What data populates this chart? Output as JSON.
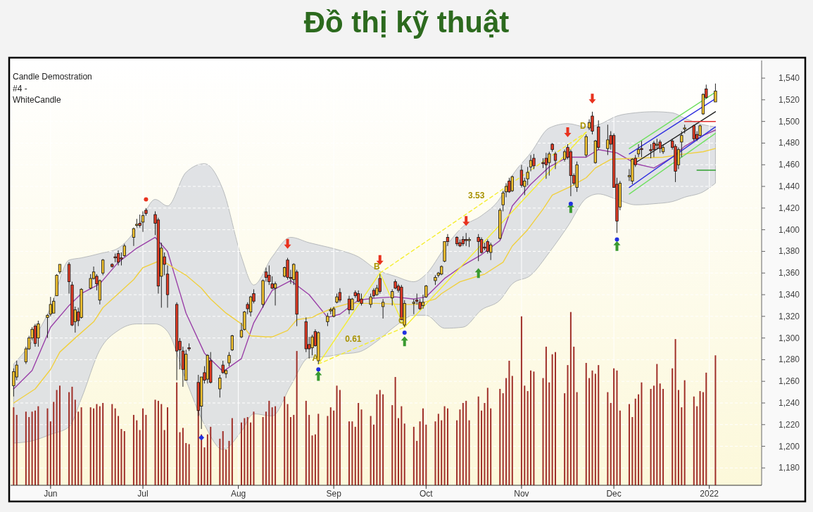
{
  "chart_data": {
    "type": "candlestick",
    "title": "Đồ thị kỹ thuật",
    "annotations": [
      "Candle Demostration",
      "#4 -",
      "WhiteCandle",
      {
        "text": "A",
        "x": "2021-08-27",
        "y": 1276
      },
      {
        "text": "B",
        "x": "2021-09-16",
        "y": 1360
      },
      {
        "text": "C",
        "x": "2021-09-24",
        "y": 1310
      },
      {
        "text": "D",
        "x": "2021-11-22",
        "y": 1490
      },
      {
        "text": "0.61",
        "x": "2021-09-10",
        "y": 1293
      },
      {
        "text": "3.53",
        "x": "2021-10-20",
        "y": 1426
      }
    ],
    "x": [
      "2021-05-20",
      "2021-05-21",
      "2021-05-24",
      "2021-05-25",
      "2021-05-26",
      "2021-05-27",
      "2021-05-28",
      "2021-05-31",
      "2021-06-01",
      "2021-06-02",
      "2021-06-03",
      "2021-06-04",
      "2021-06-07",
      "2021-06-08",
      "2021-06-09",
      "2021-06-10",
      "2021-06-11",
      "2021-06-14",
      "2021-06-15",
      "2021-06-16",
      "2021-06-17",
      "2021-06-18",
      "2021-06-21",
      "2021-06-22",
      "2021-06-23",
      "2021-06-24",
      "2021-06-25",
      "2021-06-28",
      "2021-06-29",
      "2021-06-30",
      "2021-07-01",
      "2021-07-02",
      "2021-07-05",
      "2021-07-06",
      "2021-07-07",
      "2021-07-08",
      "2021-07-09",
      "2021-07-12",
      "2021-07-13",
      "2021-07-14",
      "2021-07-15",
      "2021-07-16",
      "2021-07-19",
      "2021-07-20",
      "2021-07-21",
      "2021-07-22",
      "2021-07-23",
      "2021-07-26",
      "2021-07-27",
      "2021-07-28",
      "2021-07-29",
      "2021-07-30",
      "2021-08-02",
      "2021-08-03",
      "2021-08-04",
      "2021-08-05",
      "2021-08-06",
      "2021-08-09",
      "2021-08-10",
      "2021-08-11",
      "2021-08-12",
      "2021-08-13",
      "2021-08-16",
      "2021-08-17",
      "2021-08-18",
      "2021-08-19",
      "2021-08-20",
      "2021-08-23",
      "2021-08-24",
      "2021-08-25",
      "2021-08-26",
      "2021-08-27",
      "2021-08-30",
      "2021-08-31",
      "2021-09-01",
      "2021-09-02",
      "2021-09-03",
      "2021-09-06",
      "2021-09-07",
      "2021-09-08",
      "2021-09-09",
      "2021-09-10",
      "2021-09-13",
      "2021-09-14",
      "2021-09-15",
      "2021-09-16",
      "2021-09-17",
      "2021-09-20",
      "2021-09-21",
      "2021-09-22",
      "2021-09-23",
      "2021-09-24",
      "2021-09-27",
      "2021-09-28",
      "2021-09-29",
      "2021-09-30",
      "2021-10-01",
      "2021-10-04",
      "2021-10-05",
      "2021-10-06",
      "2021-10-07",
      "2021-10-08",
      "2021-10-11",
      "2021-10-12",
      "2021-10-13",
      "2021-10-14",
      "2021-10-15",
      "2021-10-18",
      "2021-10-19",
      "2021-10-20",
      "2021-10-21",
      "2021-10-22",
      "2021-10-25",
      "2021-10-26",
      "2021-10-27",
      "2021-10-28",
      "2021-10-29",
      "2021-11-01",
      "2021-11-02",
      "2021-11-03",
      "2021-11-04",
      "2021-11-05",
      "2021-11-08",
      "2021-11-09",
      "2021-11-10",
      "2021-11-11",
      "2021-11-12",
      "2021-11-15",
      "2021-11-16",
      "2021-11-17",
      "2021-11-18",
      "2021-11-19",
      "2021-11-22",
      "2021-11-23",
      "2021-11-24",
      "2021-11-25",
      "2021-11-26",
      "2021-11-29",
      "2021-11-30",
      "2021-12-01",
      "2021-12-02",
      "2021-12-03",
      "2021-12-06",
      "2021-12-07",
      "2021-12-08",
      "2021-12-09",
      "2021-12-10",
      "2021-12-13",
      "2021-12-14",
      "2021-12-15",
      "2021-12-16",
      "2021-12-17",
      "2021-12-20",
      "2021-12-21",
      "2021-12-22",
      "2021-12-23",
      "2021-12-24",
      "2021-12-27",
      "2021-12-28",
      "2021-12-29",
      "2021-12-30",
      "2021-12-31",
      "2022-01-03"
    ],
    "ohlc": [
      [
        1256,
        1272,
        1246,
        1269
      ],
      [
        1264,
        1279,
        1261,
        1275
      ],
      [
        1278,
        1292,
        1276,
        1290
      ],
      [
        1290,
        1302,
        1289,
        1300
      ],
      [
        1300,
        1310,
        1298,
        1308
      ],
      [
        1311,
        1313,
        1292,
        1295
      ],
      [
        1300,
        1316,
        1292,
        1313
      ],
      [
        1319,
        1322,
        1300,
        1321
      ],
      [
        1322,
        1338,
        1320,
        1331
      ],
      [
        1323,
        1337,
        1323,
        1334
      ],
      [
        1339,
        1359,
        1339,
        1358
      ],
      [
        1361,
        1368,
        1359,
        1368
      ],
      [
        1368,
        1370,
        1341,
        1352
      ],
      [
        1349,
        1352,
        1311,
        1312
      ],
      [
        1315,
        1329,
        1305,
        1326
      ],
      [
        1324,
        1328,
        1311,
        1316
      ],
      [
        1319,
        1346,
        1318,
        1345
      ],
      [
        1346,
        1359,
        1345,
        1355
      ],
      [
        1355,
        1366,
        1354,
        1361
      ],
      [
        1357,
        1359,
        1344,
        1350
      ],
      [
        1335,
        1354,
        1331,
        1353
      ],
      [
        1360,
        1373,
        1358,
        1372
      ],
      [
        1368,
        1369,
        1365,
        1366
      ],
      [
        1375,
        1378,
        1370,
        1374
      ],
      [
        1378,
        1381,
        1367,
        1370
      ],
      [
        1374,
        1379,
        1367,
        1373
      ],
      [
        1376,
        1387,
        1375,
        1385
      ],
      [
        1393,
        1402,
        1385,
        1401
      ],
      [
        1404,
        1410,
        1402,
        1405
      ],
      [
        1406,
        1414,
        1402,
        1404
      ],
      [
        1407,
        1417,
        1398,
        1413
      ],
      [
        1418,
        1420,
        1413,
        1415
      ],
      [
        1414,
        1417,
        1395,
        1406
      ],
      [
        1409,
        1411,
        1341,
        1348
      ],
      [
        1357,
        1388,
        1328,
        1383
      ],
      [
        1375,
        1379,
        1358,
        1368
      ],
      [
        1359,
        1367,
        1328,
        1340
      ],
      [
        1331,
        1333,
        1261,
        1288
      ],
      [
        1297,
        1300,
        1271,
        1289
      ],
      [
        1288,
        1292,
        1255,
        1271
      ],
      [
        1261,
        1289,
        1261,
        1285
      ],
      [
        1291,
        1295,
        1288,
        1290
      ],
      [
        1259,
        1266,
        1228,
        1233
      ],
      [
        1237,
        1264,
        1216,
        1264
      ],
      [
        1268,
        1274,
        1258,
        1261
      ],
      [
        1262,
        1285,
        1258,
        1284
      ],
      [
        1279,
        1287,
        1258,
        1259
      ],
      [
        1253,
        1266,
        1245,
        1263
      ],
      [
        1275,
        1279,
        1267,
        1268
      ],
      [
        1267,
        1271,
        1263,
        1270
      ],
      [
        1277,
        1287,
        1274,
        1284
      ],
      [
        1289,
        1303,
        1288,
        1302
      ],
      [
        1301,
        1314,
        1300,
        1307
      ],
      [
        1308,
        1325,
        1307,
        1324
      ],
      [
        1331,
        1333,
        1322,
        1327
      ],
      [
        1324,
        1339,
        1320,
        1338
      ],
      [
        1341,
        1345,
        1332,
        1334
      ],
      [
        1331,
        1354,
        1328,
        1353
      ],
      [
        1361,
        1365,
        1352,
        1356
      ],
      [
        1358,
        1367,
        1349,
        1352
      ],
      [
        1350,
        1357,
        1345,
        1346
      ],
      [
        1346,
        1352,
        1330,
        1350
      ],
      [
        1357,
        1366,
        1356,
        1365
      ],
      [
        1372,
        1374,
        1354,
        1356
      ],
      [
        1356,
        1363,
        1350,
        1355
      ],
      [
        1354,
        1369,
        1349,
        1368
      ],
      [
        1361,
        1363,
        1311,
        1322
      ],
      [
        1315,
        1319,
        1287,
        1290
      ],
      [
        1294,
        1301,
        1281,
        1290
      ],
      [
        1291,
        1303,
        1284,
        1301
      ],
      [
        1306,
        1308,
        1292,
        1293
      ],
      [
        1279,
        1306,
        1276,
        1305
      ],
      [
        1315,
        1323,
        1311,
        1320
      ],
      [
        1325,
        1328,
        1322,
        1326
      ],
      [
        1320,
        1329,
        1319,
        1327
      ],
      [
        1333,
        1341,
        1332,
        1338
      ],
      [
        1342,
        1346,
        1333,
        1335
      ],
      [
        1336,
        1339,
        1322,
        1326
      ],
      [
        1326,
        1337,
        1326,
        1336
      ],
      [
        1342,
        1344,
        1337,
        1339
      ],
      [
        1341,
        1344,
        1333,
        1334
      ],
      [
        1336,
        1341,
        1330,
        1332
      ],
      [
        1331,
        1341,
        1328,
        1338
      ],
      [
        1344,
        1346,
        1337,
        1339
      ],
      [
        1340,
        1349,
        1339,
        1346
      ],
      [
        1355,
        1359,
        1341,
        1343
      ],
      [
        1329,
        1336,
        1318,
        1333
      ],
      [
        1337,
        1345,
        1330,
        1343
      ],
      [
        1352,
        1354,
        1345,
        1346
      ],
      [
        1348,
        1350,
        1342,
        1344
      ],
      [
        1347,
        1349,
        1317,
        1317
      ],
      [
        1312,
        1335,
        1310,
        1332
      ],
      [
        1332,
        1336,
        1322,
        1333
      ],
      [
        1335,
        1341,
        1331,
        1334
      ],
      [
        1333,
        1336,
        1326,
        1327
      ],
      [
        1330,
        1340,
        1327,
        1333
      ],
      [
        1338,
        1349,
        1337,
        1348
      ],
      [
        1353,
        1358,
        1349,
        1356
      ],
      [
        1358,
        1361,
        1356,
        1360
      ],
      [
        1359,
        1367,
        1358,
        1366
      ],
      [
        1371,
        1389,
        1370,
        1389
      ],
      [
        1393,
        1396,
        1385,
        1389
      ],
      [
        1393,
        1394,
        1385,
        1387
      ],
      [
        1388,
        1391,
        1384,
        1385
      ],
      [
        1391,
        1394,
        1385,
        1387
      ],
      [
        1391,
        1397,
        1385,
        1390
      ],
      [
        1390,
        1393,
        1384,
        1391
      ],
      [
        1393,
        1396,
        1371,
        1389
      ],
      [
        1391,
        1393,
        1378,
        1379
      ],
      [
        1384,
        1388,
        1381,
        1383
      ],
      [
        1389,
        1391,
        1378,
        1380
      ],
      [
        1379,
        1388,
        1372,
        1386
      ],
      [
        1392,
        1420,
        1391,
        1418
      ],
      [
        1423,
        1436,
        1417,
        1434
      ],
      [
        1435,
        1443,
        1430,
        1440
      ],
      [
        1445,
        1448,
        1434,
        1435
      ],
      [
        1436,
        1450,
        1435,
        1449
      ],
      [
        1455,
        1460,
        1439,
        1441
      ],
      [
        1440,
        1448,
        1432,
        1445
      ],
      [
        1447,
        1458,
        1441,
        1453
      ],
      [
        1458,
        1469,
        1454,
        1464
      ],
      [
        1466,
        1470,
        1456,
        1459
      ],
      [
        1462,
        1466,
        1457,
        1461
      ],
      [
        1466,
        1471,
        1447,
        1460
      ],
      [
        1462,
        1472,
        1450,
        1470
      ],
      [
        1479,
        1480,
        1472,
        1474
      ],
      [
        1470,
        1472,
        1456,
        1464
      ],
      [
        1465,
        1474,
        1463,
        1472
      ],
      [
        1476,
        1479,
        1465,
        1467
      ],
      [
        1472,
        1474,
        1431,
        1450
      ],
      [
        1450,
        1452,
        1441,
        1443
      ],
      [
        1439,
        1463,
        1435,
        1460
      ],
      [
        1469,
        1488,
        1467,
        1486
      ],
      [
        1494,
        1502,
        1492,
        1499
      ],
      [
        1505,
        1509,
        1488,
        1491
      ],
      [
        1462,
        1483,
        1461,
        1482
      ],
      [
        1495,
        1501,
        1474,
        1476
      ],
      [
        1475,
        1497,
        1469,
        1483
      ],
      [
        1487,
        1491,
        1474,
        1479
      ],
      [
        1487,
        1489,
        1439,
        1439
      ],
      [
        1442,
        1448,
        1397,
        1408
      ],
      [
        1421,
        1445,
        1418,
        1443
      ],
      [
        1449,
        1456,
        1445,
        1450
      ],
      [
        1445,
        1466,
        1442,
        1465
      ],
      [
        1466,
        1469,
        1458,
        1460
      ],
      [
        1470,
        1479,
        1467,
        1474
      ],
      [
        1475,
        1482,
        1467,
        1474
      ],
      [
        1474,
        1479,
        1466,
        1473
      ],
      [
        1480,
        1482,
        1467,
        1474
      ],
      [
        1478,
        1484,
        1474,
        1479
      ],
      [
        1481,
        1483,
        1471,
        1475
      ],
      [
        1472,
        1479,
        1470,
        1476
      ],
      [
        1482,
        1484,
        1474,
        1476
      ],
      [
        1477,
        1479,
        1444,
        1454
      ],
      [
        1460,
        1476,
        1456,
        1474
      ],
      [
        1481,
        1491,
        1467,
        1487
      ],
      [
        1493,
        1497,
        1489,
        1494
      ],
      [
        1496,
        1497,
        1482,
        1484
      ],
      [
        1488,
        1491,
        1482,
        1484
      ],
      [
        1487,
        1497,
        1486,
        1496
      ],
      [
        1507,
        1526,
        1506,
        1525
      ],
      [
        1530,
        1534,
        1521,
        1522
      ],
      [
        1518,
        1535,
        1518,
        1528
      ]
    ],
    "colors": [
      "#f2c230",
      "#f2c230",
      "#f2c230",
      "#f2c230",
      "#f2c230",
      "#e03a24",
      "#f2c230",
      "#f2c230",
      "#f2c230",
      "#f2c230",
      "#f2c230",
      "#f2c230",
      "#e03a24",
      "#e03a24",
      "#f2c230",
      "#e03a24",
      "#f2c230",
      "#f2c230",
      "#f2c230",
      "#e03a24",
      "#f2c230",
      "#f2c230",
      "#e03a24",
      "#e03a24",
      "#e03a24",
      "#e03a24",
      "#f2c230",
      "#f2c230",
      "#f2c230",
      "#e03a24",
      "#f2c230",
      "#e03a24",
      "#e03a24",
      "#e03a24",
      "#f2c230",
      "#e03a24",
      "#e03a24",
      "#e03a24",
      "#e03a24",
      "#e03a24",
      "#f2c230",
      "#e03a24",
      "#e03a24",
      "#f2c230",
      "#e03a24",
      "#f2c230",
      "#e03a24",
      "#f2c230",
      "#e03a24",
      "#f2c230",
      "#f2c230",
      "#f2c230",
      "#f2c230",
      "#f2c230",
      "#e03a24",
      "#f2c230",
      "#e03a24",
      "#f2c230",
      "#e03a24",
      "#e03a24",
      "#e03a24",
      "#f2c230",
      "#f2c230",
      "#e03a24",
      "#e03a24",
      "#f2c230",
      "#e03a24",
      "#e03a24",
      "#e03a24",
      "#f2c230",
      "#e03a24",
      "#f2c230",
      "#f2c230",
      "#f2c230",
      "#f2c230",
      "#f2c230",
      "#e03a24",
      "#e03a24",
      "#f2c230",
      "#e03a24",
      "#e03a24",
      "#e03a24",
      "#f2c230",
      "#e03a24",
      "#f2c230",
      "#e03a24",
      "#f2c230",
      "#f2c230",
      "#e03a24",
      "#e03a24",
      "#e03a24",
      "#f2c230",
      "#f2c230",
      "#e03a24",
      "#e03a24",
      "#f2c230",
      "#f2c230",
      "#f2c230",
      "#f2c230",
      "#f2c230",
      "#f2c230",
      "#e03a24",
      "#e03a24",
      "#e03a24",
      "#e03a24",
      "#e03a24",
      "#f2c230",
      "#e03a24",
      "#e03a24",
      "#e03a24",
      "#e03a24",
      "#f2c230",
      "#f2c230",
      "#f2c230",
      "#f2c230",
      "#e03a24",
      "#f2c230",
      "#e03a24",
      "#f2c230",
      "#f2c230",
      "#f2c230",
      "#e03a24",
      "#e03a24",
      "#e03a24",
      "#f2c230",
      "#e03a24",
      "#e03a24",
      "#f2c230",
      "#e03a24",
      "#e03a24",
      "#e03a24",
      "#f2c230",
      "#f2c230",
      "#f2c230",
      "#e03a24",
      "#f2c230",
      "#e03a24",
      "#f2c230",
      "#e03a24",
      "#e03a24",
      "#e03a24",
      "#f2c230",
      "#f2c230",
      "#f2c230",
      "#e03a24",
      "#f2c230",
      "#e03a24",
      "#e03a24",
      "#e03a24",
      "#f2c230",
      "#e03a24",
      "#f2c230",
      "#e03a24",
      "#e03a24",
      "#f2c230",
      "#f2c230",
      "#f2c230",
      "#e03a24",
      "#e03a24",
      "#f2c230",
      "#f2c230",
      "#e03a24",
      "#f2c230"
    ],
    "xlim": [
      "2021-05-19",
      "2022-01-18"
    ],
    "xticks": [
      {
        "value": "2021-06-01",
        "label": "Jun"
      },
      {
        "value": "2021-07-01",
        "label": "Jul"
      },
      {
        "value": "2021-08-01",
        "label": "Aug"
      },
      {
        "value": "2021-09-01",
        "label": "Sep"
      },
      {
        "value": "2021-10-01",
        "label": "Oct"
      },
      {
        "value": "2021-11-01",
        "label": "Nov"
      },
      {
        "value": "2021-12-01",
        "label": "Dec"
      },
      {
        "value": "2022-01-01",
        "label": "2022"
      }
    ],
    "ylim": [
      1164,
      1555
    ],
    "yticks": [
      {
        "value": 1180,
        "label": "1,180"
      },
      {
        "value": 1200,
        "label": "1,200"
      },
      {
        "value": 1220,
        "label": "1,220"
      },
      {
        "value": 1240,
        "label": "1,240"
      },
      {
        "value": 1260,
        "label": "1,260"
      },
      {
        "value": 1280,
        "label": "1,280"
      },
      {
        "value": 1300,
        "label": "1,300"
      },
      {
        "value": 1320,
        "label": "1,320"
      },
      {
        "value": 1340,
        "label": "1,340"
      },
      {
        "value": 1360,
        "label": "1,360"
      },
      {
        "value": 1380,
        "label": "1,380"
      },
      {
        "value": 1400,
        "label": "1,400"
      },
      {
        "value": 1420,
        "label": "1,420"
      },
      {
        "value": 1440,
        "label": "1,440"
      },
      {
        "value": 1460,
        "label": "1,460"
      },
      {
        "value": 1480,
        "label": "1,480"
      },
      {
        "value": 1500,
        "label": "1,500"
      },
      {
        "value": 1520,
        "label": "1,520"
      },
      {
        "value": 1540,
        "label": "1,540"
      }
    ],
    "grid": true,
    "series": [
      {
        "type": "bar",
        "color": "#a0302a",
        "values": [
          1236,
          1229,
          1232,
          1227,
          1232,
          1233,
          1237,
          1235,
          1223,
          1241,
          1252,
          1256,
          1250,
          1255,
          1243,
          1232,
          1236,
          1236,
          1235,
          1239,
          1237,
          1240,
          1239,
          1235,
          1228,
          1216,
          1214,
          1229,
          1224,
          1215,
          1235,
          1229,
          1243,
          1242,
          1239,
          1215,
          1236,
          1259,
          1213,
          1217,
          1203,
          1202,
          1235,
          1211,
          1199,
          1211,
          1218,
          1207,
          1214,
          1197,
          1205,
          1226,
          1222,
          1226,
          1227,
          1222,
          1232,
          1227,
          1232,
          1242,
          1236,
          1237,
          1246,
          1239,
          1227,
          1229,
          1288,
          1242,
          1229,
          1210,
          1211,
          1230,
          1228,
          1236,
          1233,
          1256,
          1252,
          1223,
          1223,
          1218,
          1240,
          1234,
          1228,
          1220,
          1248,
          1252,
          1248,
          1238,
          1264,
          1226,
          1237,
          1221,
          1218,
          1205,
          1223,
          1235,
          1220,
          1223,
          1230,
          1224,
          1237,
          1235,
          1224,
          1234,
          1240,
          1242,
          1224,
          1246,
          1233,
          1240,
          1254,
          1235,
          1253,
          1249,
          1263,
          1279,
          1265,
          1320,
          1256,
          1251,
          1270,
          1269,
          1263,
          1292,
          1259,
          1285,
          1287,
          1249,
          1275,
          1324,
          1292,
          1250,
          1277,
          1263,
          1270,
          1267,
          1275,
          1250,
          1240,
          1272,
          1270,
          1233,
          1239,
          1227,
          1244,
          1248,
          1259,
          1253,
          1256,
          1276,
          1258,
          1253,
          1272,
          1299,
          1252,
          1236,
          1261,
          1246,
          1237,
          1251,
          1250,
          1268,
          1284
        ]
      },
      {
        "type": "line",
        "color": "#9a40a8",
        "x": [
          "2021-05-20",
          "2021-05-26",
          "2021-06-01",
          "2021-06-07",
          "2021-06-11",
          "2021-06-17",
          "2021-06-23",
          "2021-06-29",
          "2021-07-05",
          "2021-07-09",
          "2021-07-15",
          "2021-07-21",
          "2021-07-27",
          "2021-08-02",
          "2021-08-06",
          "2021-08-12",
          "2021-08-18",
          "2021-08-24",
          "2021-08-30",
          "2021-09-03",
          "2021-09-09",
          "2021-09-15",
          "2021-09-21",
          "2021-09-27",
          "2021-10-01",
          "2021-10-07",
          "2021-10-13",
          "2021-10-19",
          "2021-10-25",
          "2021-10-29",
          "2021-11-04",
          "2021-11-10",
          "2021-11-16",
          "2021-11-22",
          "2021-11-26",
          "2021-12-02",
          "2021-12-08",
          "2021-12-14",
          "2021-12-20",
          "2021-12-24",
          "2021-12-30",
          "2022-01-03"
        ],
        "values": [
          1253,
          1270,
          1310,
          1330,
          1341,
          1350,
          1370,
          1383,
          1393,
          1380,
          1323,
          1286,
          1269,
          1281,
          1314,
          1344,
          1353,
          1340,
          1319,
          1322,
          1335,
          1337,
          1338,
          1336,
          1338,
          1355,
          1367,
          1377,
          1390,
          1422,
          1442,
          1458,
          1467,
          1467,
          1474,
          1471,
          1461,
          1457,
          1467,
          1477,
          1487,
          1492
        ],
        "upper": [
          1276,
          1297,
          1328,
          1372,
          1374,
          1378,
          1383,
          1401,
          1428,
          1422,
          1453,
          1461,
          1437,
          1375,
          1349,
          1375,
          1393,
          1388,
          1384,
          1381,
          1375,
          1363,
          1357,
          1352,
          1359,
          1383,
          1403,
          1413,
          1429,
          1450,
          1471,
          1494,
          1498,
          1495,
          1497,
          1505,
          1508,
          1509,
          1508,
          1503,
          1497,
          1495
        ],
        "lower": [
          1203,
          1205,
          1211,
          1218,
          1244,
          1289,
          1307,
          1313,
          1313,
          1306,
          1261,
          1220,
          1197,
          1214,
          1230,
          1228,
          1256,
          1282,
          1283,
          1285,
          1287,
          1297,
          1311,
          1321,
          1321,
          1309,
          1310,
          1326,
          1335,
          1350,
          1358,
          1379,
          1403,
          1429,
          1433,
          1428,
          1423,
          1424,
          1426,
          1430,
          1435,
          1443
        ]
      },
      {
        "type": "line",
        "color": "#f0d040",
        "x": [
          "2021-05-20",
          "2021-05-27",
          "2021-06-01",
          "2021-06-04",
          "2021-06-09",
          "2021-06-15",
          "2021-06-18",
          "2021-06-23",
          "2021-06-28",
          "2021-07-01",
          "2021-07-07",
          "2021-07-12",
          "2021-07-15",
          "2021-07-20",
          "2021-07-23",
          "2021-07-28",
          "2021-08-02",
          "2021-08-05",
          "2021-08-10",
          "2021-08-12",
          "2021-08-17",
          "2021-08-20",
          "2021-08-25",
          "2021-08-27",
          "2021-09-01",
          "2021-09-06",
          "2021-09-15",
          "2021-09-23",
          "2021-09-28",
          "2021-10-04",
          "2021-10-06",
          "2021-10-12",
          "2021-10-20",
          "2021-10-26",
          "2021-10-29",
          "2021-11-03",
          "2021-11-08",
          "2021-11-11",
          "2021-11-17",
          "2021-11-22",
          "2021-11-25",
          "2021-11-30",
          "2021-12-08",
          "2021-12-17",
          "2021-12-24",
          "2021-12-30",
          "2022-01-03"
        ],
        "values": [
          1240,
          1253,
          1271,
          1287,
          1300,
          1315,
          1328,
          1341,
          1354,
          1365,
          1372,
          1363,
          1358,
          1346,
          1336,
          1323,
          1313,
          1302,
          1301,
          1301,
          1307,
          1317,
          1319,
          1322,
          1328,
          1332,
          1332,
          1331,
          1331,
          1336,
          1341,
          1352,
          1359,
          1370,
          1385,
          1400,
          1419,
          1432,
          1440,
          1448,
          1457,
          1465,
          1466,
          1467,
          1470,
          1472,
          1475
        ]
      },
      {
        "type": "line",
        "color": "#f5ee30",
        "x": [
          "2021-08-27",
          "2021-09-16",
          "2021-09-24",
          "2021-11-22"
        ],
        "values": [
          1276,
          1360,
          1310,
          1490
        ]
      },
      {
        "type": "line",
        "color": "#f5ee30",
        "line_style": "dashed",
        "x": [
          "2021-08-27",
          "2021-09-24"
        ],
        "values": [
          1276,
          1310
        ]
      },
      {
        "type": "line",
        "color": "#f5ee30",
        "line_style": "dashed",
        "x": [
          "2021-09-16",
          "2021-11-22"
        ],
        "values": [
          1360,
          1490
        ]
      },
      {
        "type": "line",
        "color": "#70e060",
        "x": [
          "2021-12-06",
          "2022-01-03"
        ],
        "values": [
          1475,
          1527
        ]
      },
      {
        "type": "line",
        "color": "#70e060",
        "x": [
          "2021-12-06",
          "2022-01-03"
        ],
        "values": [
          1433,
          1489
        ]
      },
      {
        "type": "line",
        "color": "#3030e0",
        "x": [
          "2021-12-06",
          "2022-01-03"
        ],
        "values": [
          1470,
          1521
        ]
      },
      {
        "type": "line",
        "color": "#3030e0",
        "x": [
          "2021-12-06",
          "2022-01-03"
        ],
        "values": [
          1439,
          1495
        ]
      },
      {
        "type": "line",
        "color": "#202020",
        "x": [
          "2021-12-07",
          "2022-01-03"
        ],
        "values": [
          1460,
          1509
        ]
      },
      {
        "type": "line",
        "color": "#e03030",
        "x": [
          "2021-12-24",
          "2022-01-03"
        ],
        "values": [
          1500,
          1500
        ]
      },
      {
        "type": "line",
        "color": "#30a030",
        "x": [
          "2021-12-28",
          "2022-01-03"
        ],
        "values": [
          1455,
          1455
        ]
      },
      {
        "type": "scatter",
        "color": "#e8321e",
        "marker": "triangle",
        "x": [
          "2021-08-17",
          "2021-09-16",
          "2021-10-14",
          "2021-11-16",
          "2021-11-24"
        ],
        "values": [
          1387,
          1372,
          1408,
          1490,
          1521
        ]
      },
      {
        "type": "scatter",
        "color": "#3a9a30",
        "marker": "triangle",
        "x": [
          "2021-08-27",
          "2021-09-24",
          "2021-10-18",
          "2021-11-17",
          "2021-12-02"
        ],
        "values": [
          1265,
          1297,
          1360,
          1420,
          1385
        ]
      },
      {
        "type": "scatter",
        "color": "#2030e0",
        "marker": "circle",
        "x": [
          "2021-08-27",
          "2021-09-24",
          "2021-11-17",
          "2021-12-02"
        ],
        "values": [
          1271,
          1305,
          1424,
          1391
        ]
      },
      {
        "type": "scatter",
        "color": "#2030e0",
        "marker": "diamond",
        "x": [
          "2021-07-20"
        ],
        "values": [
          1208
        ]
      },
      {
        "type": "scatter",
        "color": "#e8321e",
        "marker": "circle",
        "x": [
          "2021-07-02"
        ],
        "values": [
          1428
        ]
      }
    ]
  }
}
